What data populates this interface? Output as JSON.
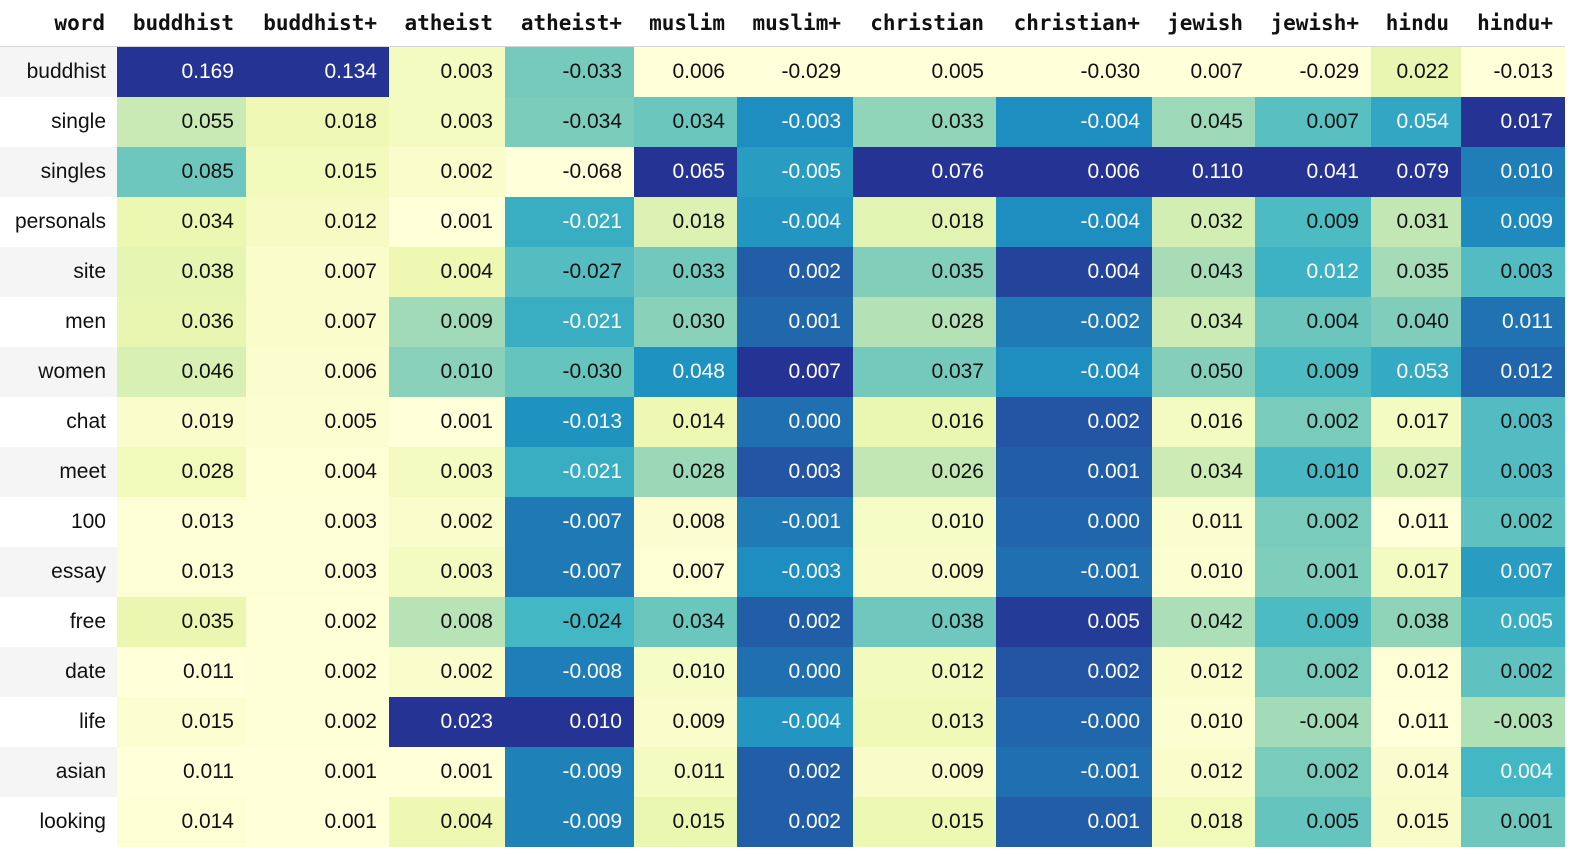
{
  "chart_data": {
    "type": "heatmap",
    "index_header": "word",
    "columns": [
      "buddhist",
      "buddhist+",
      "atheist",
      "atheist+",
      "muslim",
      "muslim+",
      "christian",
      "christian+",
      "jewish",
      "jewish+",
      "hindu",
      "hindu+"
    ],
    "rows": [
      {
        "word": "buddhist",
        "values": [
          "0.169",
          "0.134",
          "0.003",
          "-0.033",
          "0.006",
          "-0.029",
          "0.005",
          "-0.030",
          "0.007",
          "-0.029",
          "0.022",
          "-0.013"
        ]
      },
      {
        "word": "single",
        "values": [
          "0.055",
          "0.018",
          "0.003",
          "-0.034",
          "0.034",
          "-0.003",
          "0.033",
          "-0.004",
          "0.045",
          "0.007",
          "0.054",
          "0.017"
        ]
      },
      {
        "word": "singles",
        "values": [
          "0.085",
          "0.015",
          "0.002",
          "-0.068",
          "0.065",
          "-0.005",
          "0.076",
          "0.006",
          "0.110",
          "0.041",
          "0.079",
          "0.010"
        ]
      },
      {
        "word": "personals",
        "values": [
          "0.034",
          "0.012",
          "0.001",
          "-0.021",
          "0.018",
          "-0.004",
          "0.018",
          "-0.004",
          "0.032",
          "0.009",
          "0.031",
          "0.009"
        ]
      },
      {
        "word": "site",
        "values": [
          "0.038",
          "0.007",
          "0.004",
          "-0.027",
          "0.033",
          "0.002",
          "0.035",
          "0.004",
          "0.043",
          "0.012",
          "0.035",
          "0.003"
        ]
      },
      {
        "word": "men",
        "values": [
          "0.036",
          "0.007",
          "0.009",
          "-0.021",
          "0.030",
          "0.001",
          "0.028",
          "-0.002",
          "0.034",
          "0.004",
          "0.040",
          "0.011"
        ]
      },
      {
        "word": "women",
        "values": [
          "0.046",
          "0.006",
          "0.010",
          "-0.030",
          "0.048",
          "0.007",
          "0.037",
          "-0.004",
          "0.050",
          "0.009",
          "0.053",
          "0.012"
        ]
      },
      {
        "word": "chat",
        "values": [
          "0.019",
          "0.005",
          "0.001",
          "-0.013",
          "0.014",
          "0.000",
          "0.016",
          "0.002",
          "0.016",
          "0.002",
          "0.017",
          "0.003"
        ]
      },
      {
        "word": "meet",
        "values": [
          "0.028",
          "0.004",
          "0.003",
          "-0.021",
          "0.028",
          "0.003",
          "0.026",
          "0.001",
          "0.034",
          "0.010",
          "0.027",
          "0.003"
        ]
      },
      {
        "word": "100",
        "values": [
          "0.013",
          "0.003",
          "0.002",
          "-0.007",
          "0.008",
          "-0.001",
          "0.010",
          "0.000",
          "0.011",
          "0.002",
          "0.011",
          "0.002"
        ]
      },
      {
        "word": "essay",
        "values": [
          "0.013",
          "0.003",
          "0.003",
          "-0.007",
          "0.007",
          "-0.003",
          "0.009",
          "-0.001",
          "0.010",
          "0.001",
          "0.017",
          "0.007"
        ]
      },
      {
        "word": "free",
        "values": [
          "0.035",
          "0.002",
          "0.008",
          "-0.024",
          "0.034",
          "0.002",
          "0.038",
          "0.005",
          "0.042",
          "0.009",
          "0.038",
          "0.005"
        ]
      },
      {
        "word": "date",
        "values": [
          "0.011",
          "0.002",
          "0.002",
          "-0.008",
          "0.010",
          "0.000",
          "0.012",
          "0.002",
          "0.012",
          "0.002",
          "0.012",
          "0.002"
        ]
      },
      {
        "word": "life",
        "values": [
          "0.015",
          "0.002",
          "0.023",
          "0.010",
          "0.009",
          "-0.004",
          "0.013",
          "-0.000",
          "0.010",
          "-0.004",
          "0.011",
          "-0.003"
        ]
      },
      {
        "word": "asian",
        "values": [
          "0.011",
          "0.001",
          "0.001",
          "-0.009",
          "0.011",
          "0.002",
          "0.009",
          "-0.001",
          "0.012",
          "0.002",
          "0.014",
          "0.004"
        ]
      },
      {
        "word": "looking",
        "values": [
          "0.014",
          "0.001",
          "0.004",
          "-0.009",
          "0.015",
          "0.002",
          "0.015",
          "0.001",
          "0.018",
          "0.005",
          "0.015",
          "0.001"
        ]
      }
    ],
    "colormap": "YlGnBu",
    "color_stops": [
      "#ffffd9",
      "#edf8b1",
      "#c7e9b4",
      "#7fcdbb",
      "#41b6c4",
      "#1d91c0",
      "#225ea8",
      "#253494"
    ]
  }
}
